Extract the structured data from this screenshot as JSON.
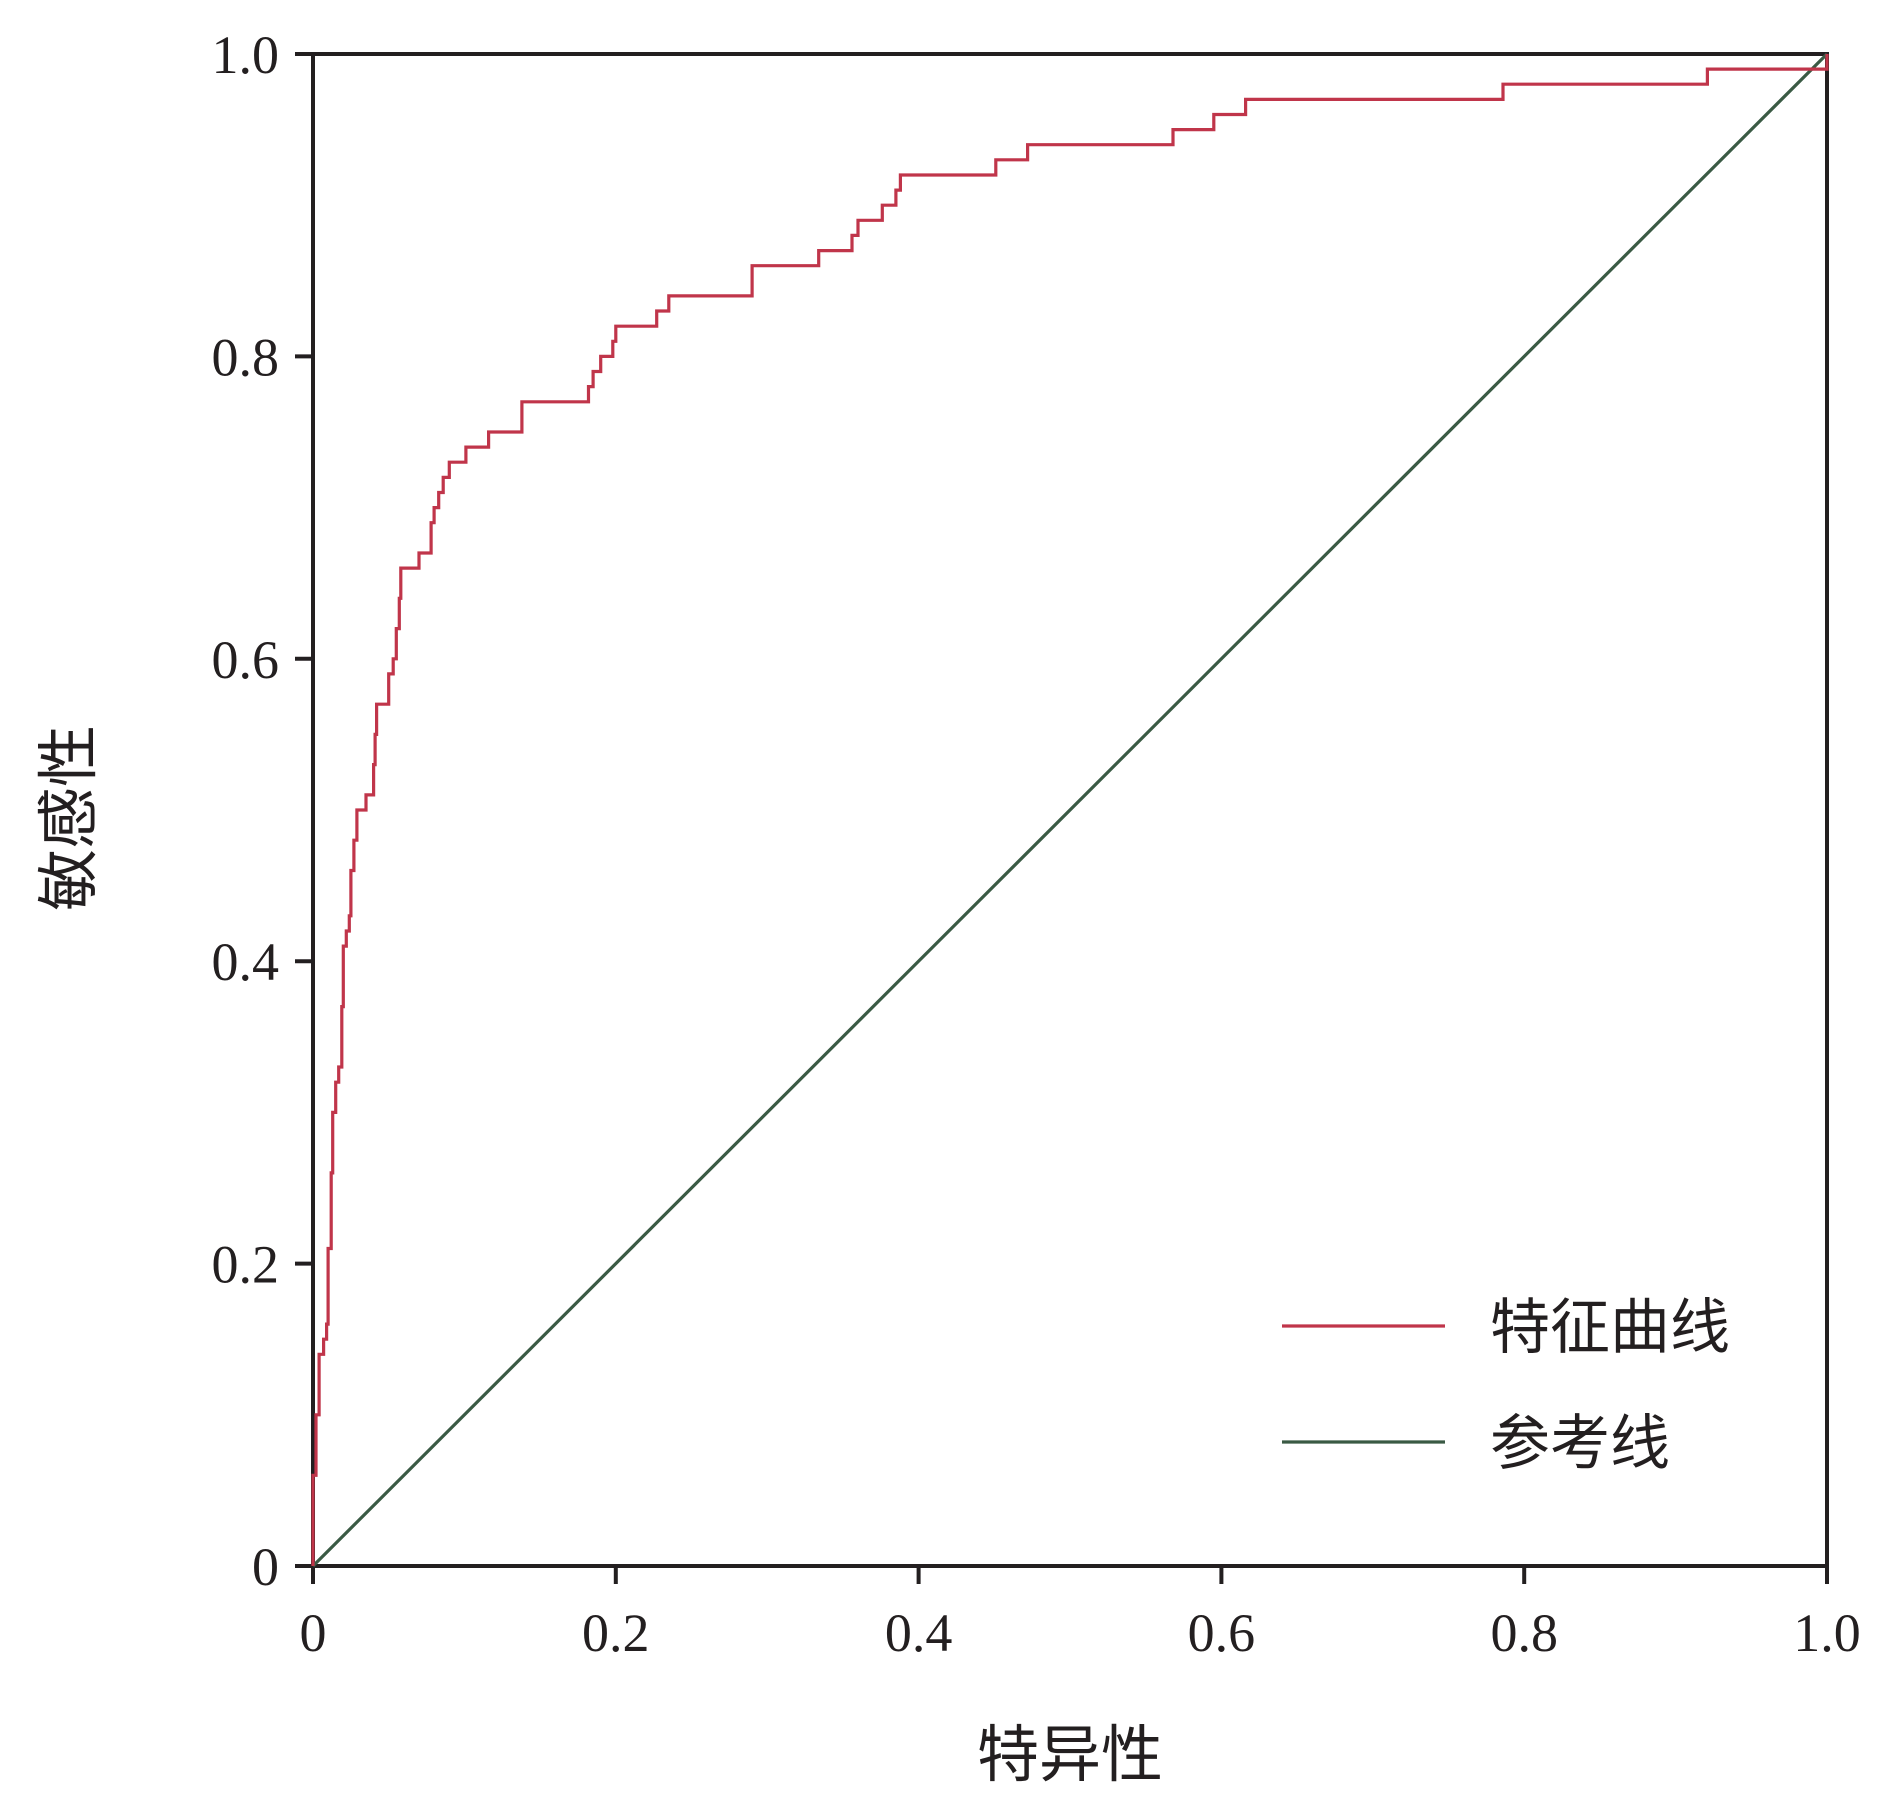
{
  "chart_data": {
    "type": "line",
    "xlabel": "特异性",
    "ylabel": "敏感性",
    "xlim": [
      0,
      1.0
    ],
    "ylim": [
      0,
      1.0
    ],
    "x_ticks": [
      "0",
      "0.2",
      "0.4",
      "0.6",
      "0.8",
      "1.0"
    ],
    "y_ticks": [
      "0",
      "0.2",
      "0.4",
      "0.6",
      "0.8",
      "1.0"
    ],
    "grid": false,
    "legend": "bottom-right",
    "series": [
      {
        "name": "特征曲线",
        "color": "#c0354a",
        "step": true,
        "points": [
          [
            0,
            0
          ],
          [
            0,
            0.06
          ],
          [
            0.002,
            0.1
          ],
          [
            0.004,
            0.14
          ],
          [
            0.007,
            0.15
          ],
          [
            0.009,
            0.16
          ],
          [
            0.01,
            0.21
          ],
          [
            0.012,
            0.26
          ],
          [
            0.013,
            0.3
          ],
          [
            0.015,
            0.32
          ],
          [
            0.017,
            0.33
          ],
          [
            0.019,
            0.37
          ],
          [
            0.02,
            0.41
          ],
          [
            0.022,
            0.42
          ],
          [
            0.024,
            0.43
          ],
          [
            0.025,
            0.46
          ],
          [
            0.027,
            0.48
          ],
          [
            0.029,
            0.5
          ],
          [
            0.034,
            0.5
          ],
          [
            0.035,
            0.51
          ],
          [
            0.039,
            0.51
          ],
          [
            0.04,
            0.53
          ],
          [
            0.041,
            0.55
          ],
          [
            0.042,
            0.57
          ],
          [
            0.048,
            0.57
          ],
          [
            0.05,
            0.59
          ],
          [
            0.053,
            0.6
          ],
          [
            0.055,
            0.62
          ],
          [
            0.057,
            0.64
          ],
          [
            0.058,
            0.66
          ],
          [
            0.069,
            0.66
          ],
          [
            0.07,
            0.67
          ],
          [
            0.075,
            0.67
          ],
          [
            0.078,
            0.69
          ],
          [
            0.08,
            0.7
          ],
          [
            0.083,
            0.71
          ],
          [
            0.086,
            0.72
          ],
          [
            0.09,
            0.73
          ],
          [
            0.1,
            0.73
          ],
          [
            0.101,
            0.74
          ],
          [
            0.115,
            0.74
          ],
          [
            0.116,
            0.75
          ],
          [
            0.137,
            0.75
          ],
          [
            0.138,
            0.77
          ],
          [
            0.181,
            0.77
          ],
          [
            0.182,
            0.78
          ],
          [
            0.185,
            0.79
          ],
          [
            0.19,
            0.8
          ],
          [
            0.198,
            0.81
          ],
          [
            0.2,
            0.82
          ],
          [
            0.225,
            0.82
          ],
          [
            0.227,
            0.83
          ],
          [
            0.234,
            0.83
          ],
          [
            0.235,
            0.84
          ],
          [
            0.289,
            0.84
          ],
          [
            0.29,
            0.86
          ],
          [
            0.333,
            0.86
          ],
          [
            0.334,
            0.87
          ],
          [
            0.355,
            0.87
          ],
          [
            0.356,
            0.88
          ],
          [
            0.359,
            0.88
          ],
          [
            0.36,
            0.89
          ],
          [
            0.375,
            0.89
          ],
          [
            0.376,
            0.9
          ],
          [
            0.38,
            0.9
          ],
          [
            0.385,
            0.91
          ],
          [
            0.388,
            0.92
          ],
          [
            0.45,
            0.92
          ],
          [
            0.451,
            0.93
          ],
          [
            0.47,
            0.93
          ],
          [
            0.472,
            0.94
          ],
          [
            0.567,
            0.94
          ],
          [
            0.568,
            0.95
          ],
          [
            0.594,
            0.95
          ],
          [
            0.595,
            0.96
          ],
          [
            0.615,
            0.96
          ],
          [
            0.616,
            0.97
          ],
          [
            0.785,
            0.97
          ],
          [
            0.786,
            0.98
          ],
          [
            0.92,
            0.98
          ],
          [
            0.921,
            0.99
          ],
          [
            1.0,
            0.99
          ],
          [
            1.0,
            1.0
          ]
        ]
      },
      {
        "name": "参考线",
        "color": "#3a5a44",
        "points": [
          [
            0,
            0
          ],
          [
            1.0,
            1.0
          ]
        ]
      }
    ]
  }
}
